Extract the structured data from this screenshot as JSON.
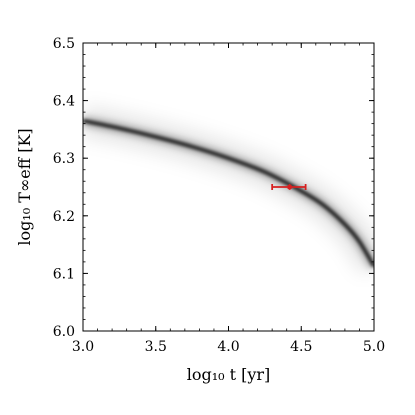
{
  "chart_data": {
    "type": "heatmap",
    "title": "",
    "xlabel": "log₁₀ t [yr]",
    "ylabel": "log₁₀ T∞eff [K]",
    "xlim": [
      3.0,
      5.0
    ],
    "ylim": [
      6.0,
      6.5
    ],
    "xticks": [
      "3.0",
      "3.5",
      "4.0",
      "4.5",
      "5.0"
    ],
    "yticks": [
      "6.0",
      "6.1",
      "6.2",
      "6.3",
      "6.4",
      "6.5"
    ],
    "colormap": "greys",
    "grid": false,
    "density_ridge": {
      "x": [
        3.0,
        3.25,
        3.5,
        3.75,
        4.0,
        4.25,
        4.5,
        4.65,
        4.8,
        4.9,
        5.0
      ],
      "y": [
        6.365,
        6.352,
        6.337,
        6.32,
        6.3,
        6.276,
        6.243,
        6.219,
        6.185,
        6.155,
        6.112
      ]
    },
    "measurement": {
      "x": 4.42,
      "y": 6.25,
      "x_err": [
        4.3,
        4.53
      ],
      "y_err": [
        6.245,
        6.255
      ],
      "color": "#d62020"
    }
  }
}
